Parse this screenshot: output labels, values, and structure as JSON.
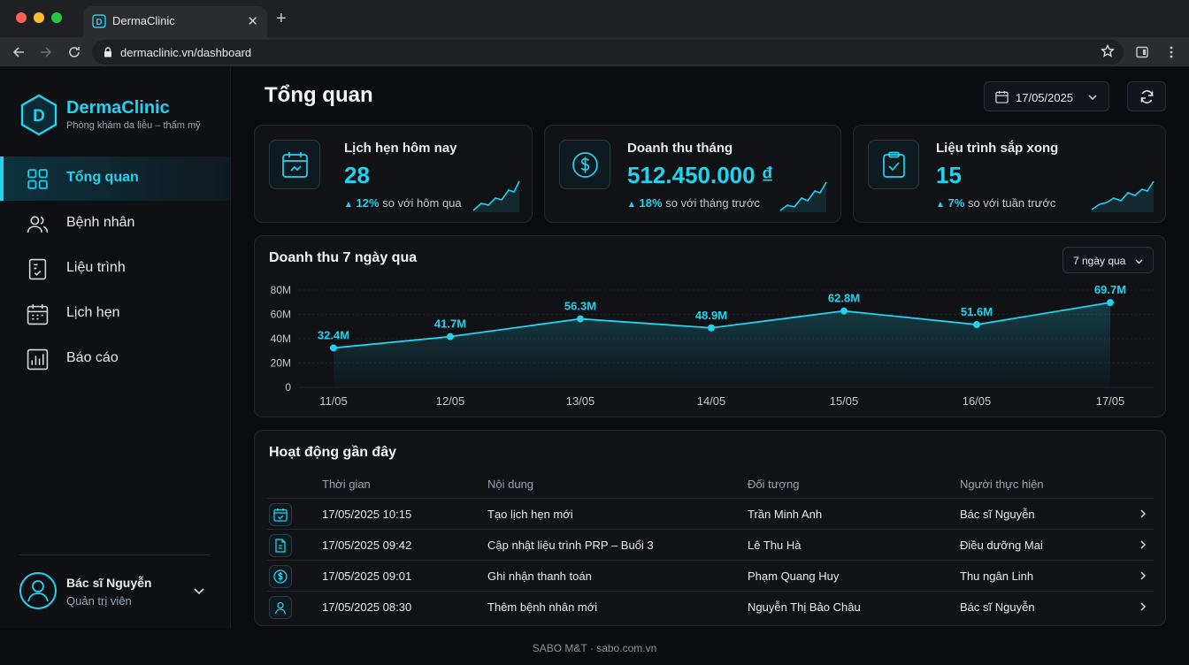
{
  "browser": {
    "tab_title": "DermaClinic",
    "favicon_letter": "D",
    "url": "dermaclinic.vn/dashboard"
  },
  "sidebar": {
    "brand": "DermaClinic",
    "brand_letter": "D",
    "tagline": "Phòng khám da liễu – thẩm mỹ",
    "items": [
      {
        "label": "Tổng quan",
        "icon": "grid-icon",
        "active": true
      },
      {
        "label": "Bệnh nhân",
        "icon": "users-icon",
        "active": false
      },
      {
        "label": "Liệu trình",
        "icon": "document-icon",
        "active": false
      },
      {
        "label": "Lịch hẹn",
        "icon": "calendar-icon",
        "active": false
      },
      {
        "label": "Báo cáo",
        "icon": "bar-chart-icon",
        "active": false
      }
    ],
    "user": {
      "name": "Bác sĩ Nguyễn",
      "role": "Quản trị viên"
    }
  },
  "header": {
    "title": "Tổng quan",
    "date": "17/05/2025"
  },
  "kpis": [
    {
      "label": "Lịch hẹn hôm nay",
      "value": "28",
      "delta": "12%",
      "delta_text": "so với hôm qua",
      "icon": "calendar-icon"
    },
    {
      "label": "Doanh thu tháng",
      "value": "512.450.000 ₫",
      "delta": "18%",
      "delta_text": "so với tháng trước",
      "icon": "dollar-icon"
    },
    {
      "label": "Liệu trình sắp xong",
      "value": "15",
      "delta": "7%",
      "delta_text": "so với tuần trước",
      "icon": "clipboard-check-icon"
    }
  ],
  "revenue_chart": {
    "title": "Doanh thu 7 ngày qua",
    "range_label": "7 ngày qua"
  },
  "chart_data": {
    "type": "area",
    "title": "Doanh thu 7 ngày qua",
    "x": [
      "11/05",
      "12/05",
      "13/05",
      "14/05",
      "15/05",
      "16/05",
      "17/05"
    ],
    "series": [
      {
        "values": [
          32.4,
          41.7,
          56.3,
          48.9,
          62.8,
          51.6,
          69.7
        ],
        "labels": [
          "32.4M",
          "41.7M",
          "56.3M",
          "48.9M",
          "62.8M",
          "51.6M",
          "69.7M"
        ]
      }
    ],
    "y_ticks": [
      "0",
      "20M",
      "40M",
      "60M",
      "80M"
    ],
    "ylim": [
      0,
      80
    ],
    "grid": true,
    "color": "#22d3ee"
  },
  "activity": {
    "title": "Hoạt động gần đây",
    "columns": [
      "Thời gian",
      "Nội dung",
      "Đối tượng",
      "Người thực hiện"
    ],
    "rows": [
      {
        "icon": "calendar-check-icon",
        "time": "17/05/2025 10:15",
        "content": "Tạo lịch hẹn mới",
        "subject": "Trần Minh Anh",
        "actor": "Bác sĩ Nguyễn"
      },
      {
        "icon": "document-icon",
        "time": "17/05/2025 09:42",
        "content": "Cập nhật liệu trình PRP – Buổi 3",
        "subject": "Lê Thu Hà",
        "actor": "Điều dưỡng Mai"
      },
      {
        "icon": "dollar-icon",
        "time": "17/05/2025 09:01",
        "content": "Ghi nhận thanh toán",
        "subject": "Phạm Quang Huy",
        "actor": "Thu ngân Linh"
      },
      {
        "icon": "user-icon",
        "time": "17/05/2025 08:30",
        "content": "Thêm bệnh nhân mới",
        "subject": "Nguyễn Thị Bảo Châu",
        "actor": "Bác sĩ Nguyễn"
      }
    ]
  },
  "footer": {
    "text": "SABO M&T · sabo.com.vn"
  }
}
